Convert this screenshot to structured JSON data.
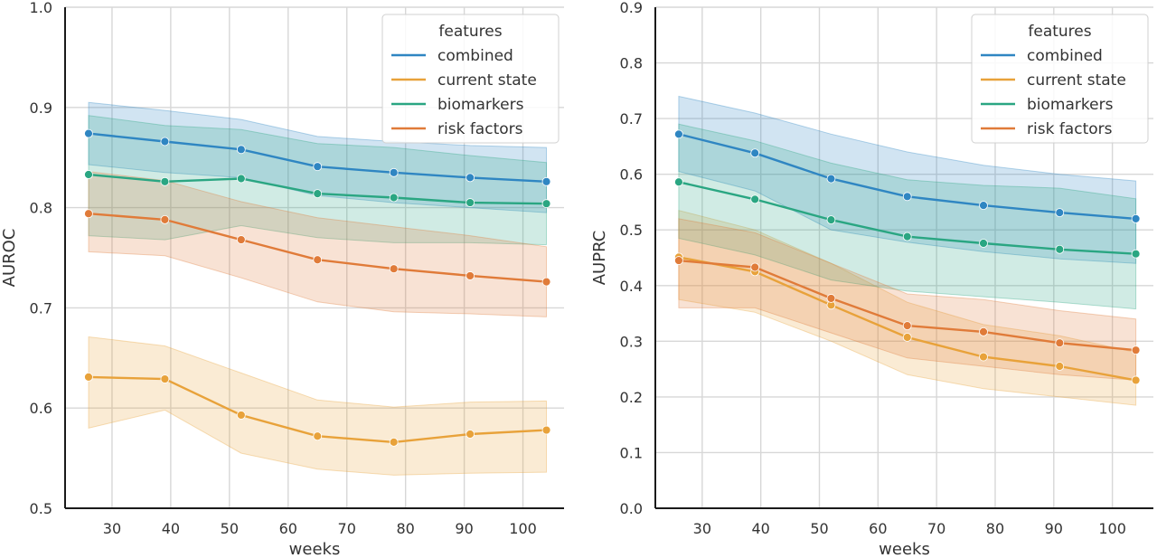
{
  "chart_data": [
    {
      "type": "line",
      "title": "",
      "xlabel": "weeks",
      "ylabel": "AUROC",
      "xlim": [
        22,
        107
      ],
      "ylim": [
        0.5,
        1.0
      ],
      "xticks": [
        "30",
        "40",
        "50",
        "60",
        "70",
        "80",
        "90",
        "100"
      ],
      "yticks": [
        "0.5",
        "0.6",
        "0.7",
        "0.8",
        "0.9",
        "1.0"
      ],
      "grid": true,
      "legend": {
        "title": "features",
        "position": "top-right"
      },
      "x": [
        26,
        39,
        52,
        65,
        78,
        91,
        104
      ],
      "series": [
        {
          "name": "combined",
          "color": "#2f86c2",
          "values": [
            0.874,
            0.866,
            0.858,
            0.841,
            0.835,
            0.83,
            0.826
          ],
          "lower": [
            0.843,
            0.835,
            0.83,
            0.812,
            0.805,
            0.8,
            0.795
          ],
          "upper": [
            0.905,
            0.897,
            0.888,
            0.871,
            0.866,
            0.862,
            0.86
          ]
        },
        {
          "name": "current state",
          "color": "#e8a23a",
          "values": [
            0.631,
            0.629,
            0.593,
            0.572,
            0.566,
            0.574,
            0.578
          ],
          "lower": [
            0.58,
            0.598,
            0.555,
            0.539,
            0.533,
            0.535,
            0.536
          ],
          "upper": [
            0.671,
            0.662,
            0.635,
            0.608,
            0.601,
            0.606,
            0.607
          ]
        },
        {
          "name": "biomarkers",
          "color": "#2aa682",
          "values": [
            0.833,
            0.826,
            0.829,
            0.814,
            0.81,
            0.805,
            0.804
          ],
          "lower": [
            0.772,
            0.768,
            0.782,
            0.77,
            0.765,
            0.765,
            0.763
          ],
          "upper": [
            0.892,
            0.882,
            0.878,
            0.864,
            0.86,
            0.852,
            0.845
          ]
        },
        {
          "name": "risk factors",
          "color": "#e07b39",
          "values": [
            0.794,
            0.788,
            0.768,
            0.748,
            0.739,
            0.732,
            0.726
          ],
          "lower": [
            0.756,
            0.752,
            0.73,
            0.706,
            0.696,
            0.694,
            0.691
          ],
          "upper": [
            0.836,
            0.827,
            0.806,
            0.79,
            0.781,
            0.772,
            0.761
          ]
        }
      ]
    },
    {
      "type": "line",
      "title": "",
      "xlabel": "weeks",
      "ylabel": "AUPRC",
      "xlim": [
        22,
        107
      ],
      "ylim": [
        0.0,
        0.9
      ],
      "xticks": [
        "30",
        "40",
        "50",
        "60",
        "70",
        "80",
        "90",
        "100"
      ],
      "yticks": [
        "0.0",
        "0.1",
        "0.2",
        "0.3",
        "0.4",
        "0.5",
        "0.6",
        "0.7",
        "0.8",
        "0.9"
      ],
      "grid": true,
      "legend": {
        "title": "features",
        "position": "top-right"
      },
      "x": [
        26,
        39,
        52,
        65,
        78,
        91,
        104
      ],
      "series": [
        {
          "name": "combined",
          "color": "#2f86c2",
          "values": [
            0.672,
            0.638,
            0.592,
            0.56,
            0.544,
            0.531,
            0.52
          ],
          "lower": [
            0.605,
            0.57,
            0.5,
            0.478,
            0.461,
            0.448,
            0.44
          ],
          "upper": [
            0.74,
            0.71,
            0.672,
            0.64,
            0.616,
            0.6,
            0.588
          ]
        },
        {
          "name": "current state",
          "color": "#e8a23a",
          "values": [
            0.451,
            0.425,
            0.365,
            0.307,
            0.272,
            0.255,
            0.23
          ],
          "lower": [
            0.375,
            0.352,
            0.3,
            0.24,
            0.215,
            0.2,
            0.185
          ],
          "upper": [
            0.535,
            0.5,
            0.44,
            0.37,
            0.33,
            0.31,
            0.28
          ]
        },
        {
          "name": "biomarkers",
          "color": "#2aa682",
          "values": [
            0.586,
            0.555,
            0.518,
            0.488,
            0.476,
            0.465,
            0.457
          ],
          "lower": [
            0.485,
            0.455,
            0.41,
            0.39,
            0.38,
            0.37,
            0.358
          ],
          "upper": [
            0.69,
            0.66,
            0.62,
            0.59,
            0.58,
            0.575,
            0.556
          ]
        },
        {
          "name": "risk factors",
          "color": "#e07b39",
          "values": [
            0.445,
            0.433,
            0.377,
            0.328,
            0.317,
            0.297,
            0.284
          ],
          "lower": [
            0.36,
            0.36,
            0.315,
            0.27,
            0.255,
            0.24,
            0.23
          ],
          "upper": [
            0.52,
            0.495,
            0.44,
            0.385,
            0.375,
            0.355,
            0.34
          ]
        }
      ]
    }
  ]
}
